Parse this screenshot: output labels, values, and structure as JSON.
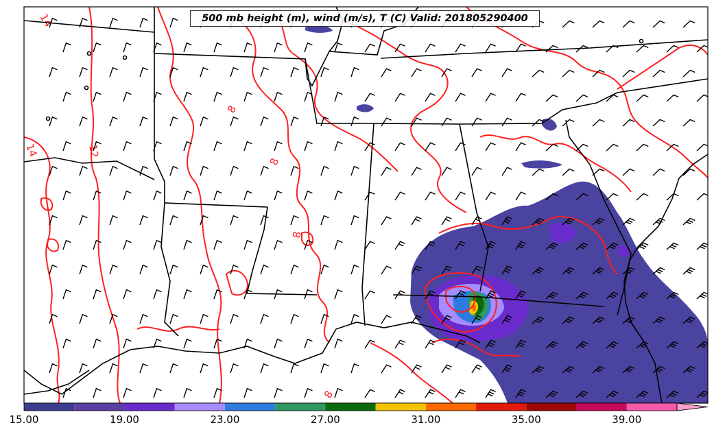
{
  "title": "500 mb height (m), wind (m/s), T (C) Valid: 201805290400",
  "contour_labels": [
    "14",
    "12",
    "14",
    "8",
    "8",
    "8",
    "8"
  ],
  "colorbar": {
    "bounds": [
      15,
      17,
      19,
      21,
      23,
      25,
      27,
      29,
      31,
      33,
      35,
      37,
      39,
      41
    ],
    "colors": [
      "#3d3d8f",
      "#5b3fa3",
      "#6a2bcc",
      "#a78cff",
      "#2e7be0",
      "#2e9960",
      "#0b6a0b",
      "#f5c200",
      "#ff6a00",
      "#e01b0b",
      "#9e0808",
      "#c8085a",
      "#f55aa8"
    ],
    "extend_color": "#f9a0cc",
    "tick_labels": [
      "15.00",
      "19.00",
      "23.00",
      "27.00",
      "31.00",
      "35.00",
      "39.00"
    ]
  }
}
